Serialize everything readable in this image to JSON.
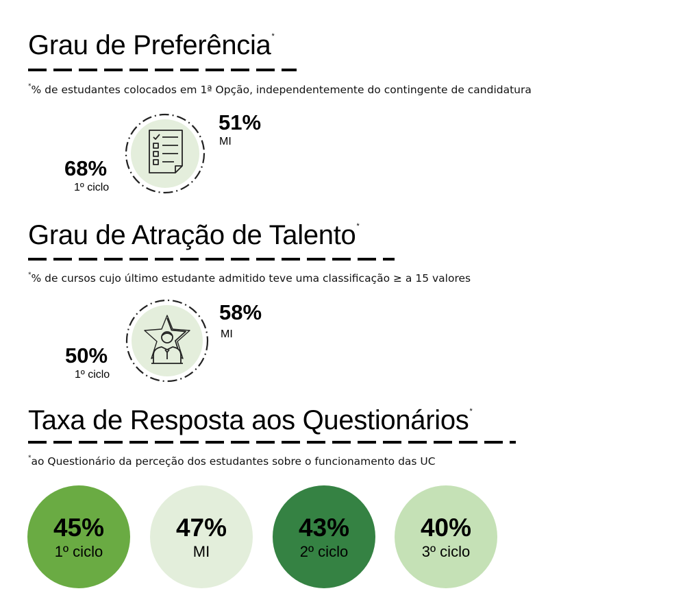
{
  "preference": {
    "title": "Grau de Preferência",
    "asterisk": "*",
    "note_asterisk": "*",
    "note": "% de estudantes colocados em 1ª Opção, independentemente do contingente de candidatura",
    "icon": "checklist-document-icon",
    "stats": [
      {
        "value": "68%",
        "label": "1º ciclo"
      },
      {
        "value": "51%",
        "label": "MI"
      }
    ]
  },
  "talent": {
    "title": "Grau de Atração de Talento",
    "asterisk": "*",
    "note_asterisk": "*",
    "note": "% de cursos cujo último estudante admitido teve uma classificação ≥ a 15 valores",
    "icon": "star-person-icon",
    "stats": [
      {
        "value": "50%",
        "label": "1º ciclo"
      },
      {
        "value": "58%",
        "label": "MI"
      }
    ]
  },
  "response": {
    "title": "Taxa de Resposta aos Questionários",
    "asterisk": "*",
    "note_asterisk": "*",
    "note": "ao Questionário da perceção dos estudantes sobre o funcionamento das UC",
    "rates": [
      {
        "value": "45%",
        "label": "1º ciclo",
        "color": "#6aab43"
      },
      {
        "value": "47%",
        "label": "MI",
        "color": "#e3eedb"
      },
      {
        "value": "43%",
        "label": "2º ciclo",
        "color": "#358243"
      },
      {
        "value": "40%",
        "label": "3º ciclo",
        "color": "#c5e1b6"
      }
    ]
  },
  "colors": {
    "icon_circle_fill": "#e4eedc",
    "icon_stroke": "#222222"
  }
}
